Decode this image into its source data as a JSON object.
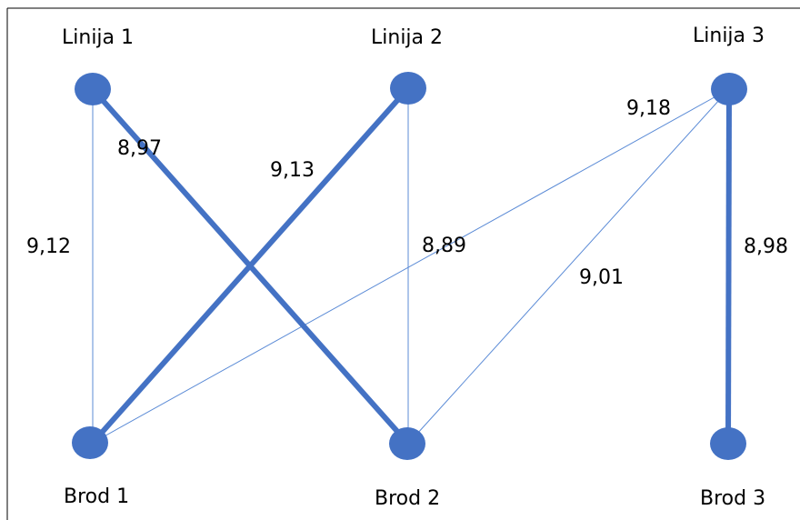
{
  "nodes": {
    "linija_1": "Linija 1",
    "linija_2": "Linija 2",
    "linija_3": "Linija 3",
    "brod_1": "Brod 1",
    "brod_2": "Brod 2",
    "brod_3": "Brod 3"
  },
  "edges": {
    "l1_b1": "9,12",
    "l1_b2": "8,97",
    "l2_b1": "9,13",
    "l3_b1": "8,89",
    "l3_b2": "9,01",
    "l3_b2_upper": "9,18",
    "l3_b3": "8,98"
  },
  "colors": {
    "node_fill": "#4472C4",
    "thick_edge": "#4472C4",
    "thin_edge": "#5B8BD6"
  }
}
